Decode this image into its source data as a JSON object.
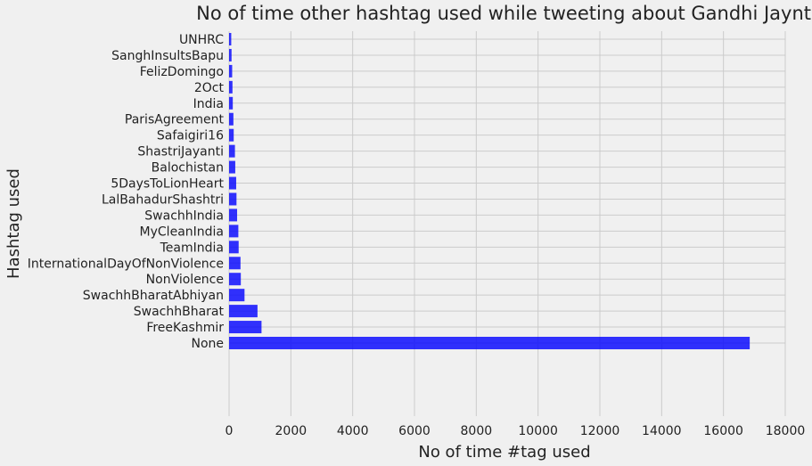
{
  "chart_data": {
    "type": "bar",
    "orientation": "horizontal",
    "title": "No of time other hashtag used while tweeting about Gandhi Jaynti",
    "xlabel": "No of time #tag used",
    "ylabel": "Hashtag used",
    "xlim": [
      0,
      18000
    ],
    "xticks": [
      0,
      2000,
      4000,
      6000,
      8000,
      10000,
      12000,
      14000,
      16000,
      18000
    ],
    "grid": true,
    "bar_color": "#0000ff",
    "categories": [
      "None",
      "FreeKashmir",
      "SwachhBharat",
      "SwachhBharatAbhiyan",
      "NonViolence",
      "InternationalDayOfNonViolence",
      "TeamIndia",
      "MyCleanIndia",
      "SwachhIndia",
      "LalBahadurShashtri",
      "5DaysToLionHeart",
      "Balochistan",
      "ShastriJayanti",
      "Safaigiri16",
      "ParisAgreement",
      "India",
      "2Oct",
      "FelizDomingo",
      "SanghInsultsBapu",
      "UNHRC"
    ],
    "values": [
      16850,
      1050,
      920,
      500,
      380,
      370,
      310,
      300,
      260,
      240,
      230,
      200,
      190,
      150,
      140,
      120,
      110,
      100,
      80,
      70
    ]
  }
}
